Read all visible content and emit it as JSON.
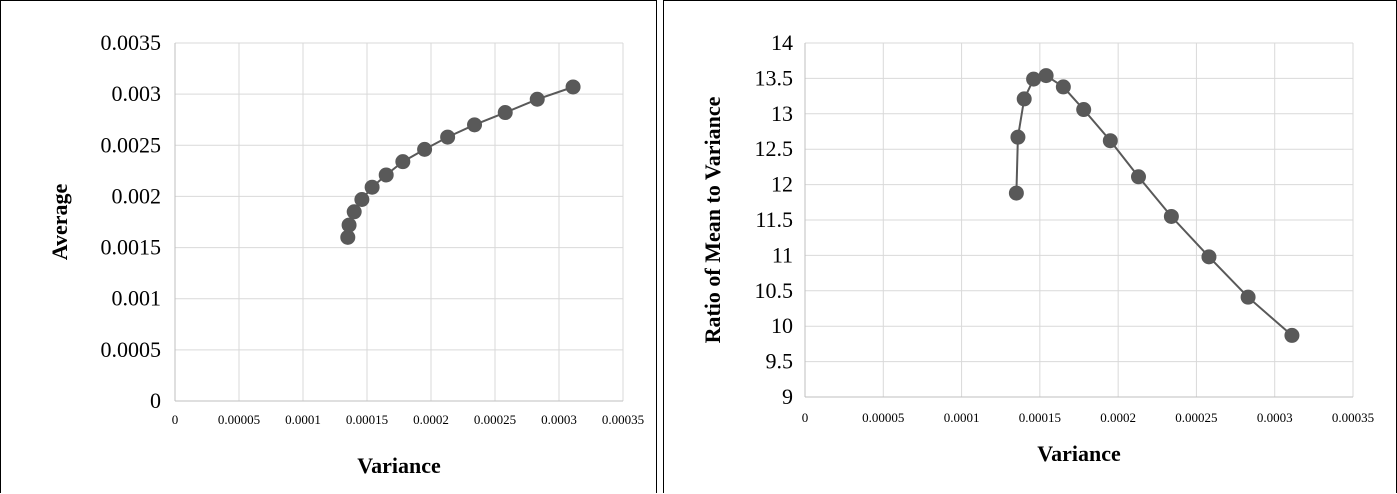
{
  "chart_data": [
    {
      "type": "scatter",
      "title": "",
      "xlabel": "Variance",
      "ylabel": "Average",
      "xlim": [
        0,
        0.00035
      ],
      "ylim": [
        0,
        0.0035
      ],
      "x_ticks": [
        "0",
        "0.00005",
        "0.0001",
        "0.00015",
        "0.0002",
        "0.00025",
        "0.0003",
        "0.00035"
      ],
      "y_ticks": [
        "0",
        "0.0005",
        "0.001",
        "0.0015",
        "0.002",
        "0.0025",
        "0.003",
        "0.0035"
      ],
      "grid": true,
      "series": [
        {
          "color": "#595959",
          "points": [
            [
              0.000135,
              0.0016
            ],
            [
              0.000136,
              0.00172
            ],
            [
              0.00014,
              0.00185
            ],
            [
              0.000146,
              0.00197
            ],
            [
              0.000154,
              0.00209
            ],
            [
              0.000165,
              0.00221
            ],
            [
              0.000178,
              0.00234
            ],
            [
              0.000195,
              0.00246
            ],
            [
              0.000213,
              0.00258
            ],
            [
              0.000234,
              0.0027
            ],
            [
              0.000258,
              0.00282
            ],
            [
              0.000283,
              0.00295
            ],
            [
              0.000311,
              0.00307
            ]
          ]
        }
      ]
    },
    {
      "type": "scatter",
      "title": "",
      "xlabel": "Variance",
      "ylabel": "Ratio of Mean to Variance",
      "xlim": [
        0,
        0.00035
      ],
      "ylim": [
        9,
        14
      ],
      "x_ticks": [
        "0",
        "0.00005",
        "0.0001",
        "0.00015",
        "0.0002",
        "0.00025",
        "0.0003",
        "0.00035"
      ],
      "y_ticks": [
        "9",
        "9.5",
        "10",
        "10.5",
        "11",
        "11.5",
        "12",
        "12.5",
        "13",
        "13.5",
        "14"
      ],
      "grid": true,
      "series": [
        {
          "color": "#595959",
          "points": [
            [
              0.000135,
              11.88
            ],
            [
              0.000136,
              12.67
            ],
            [
              0.00014,
              13.21
            ],
            [
              0.000146,
              13.49
            ],
            [
              0.000154,
              13.54
            ],
            [
              0.000165,
              13.38
            ],
            [
              0.000178,
              13.06
            ],
            [
              0.000195,
              12.62
            ],
            [
              0.000213,
              12.11
            ],
            [
              0.000234,
              11.55
            ],
            [
              0.000258,
              10.98
            ],
            [
              0.000283,
              10.41
            ],
            [
              0.000311,
              9.87
            ]
          ]
        }
      ]
    }
  ]
}
